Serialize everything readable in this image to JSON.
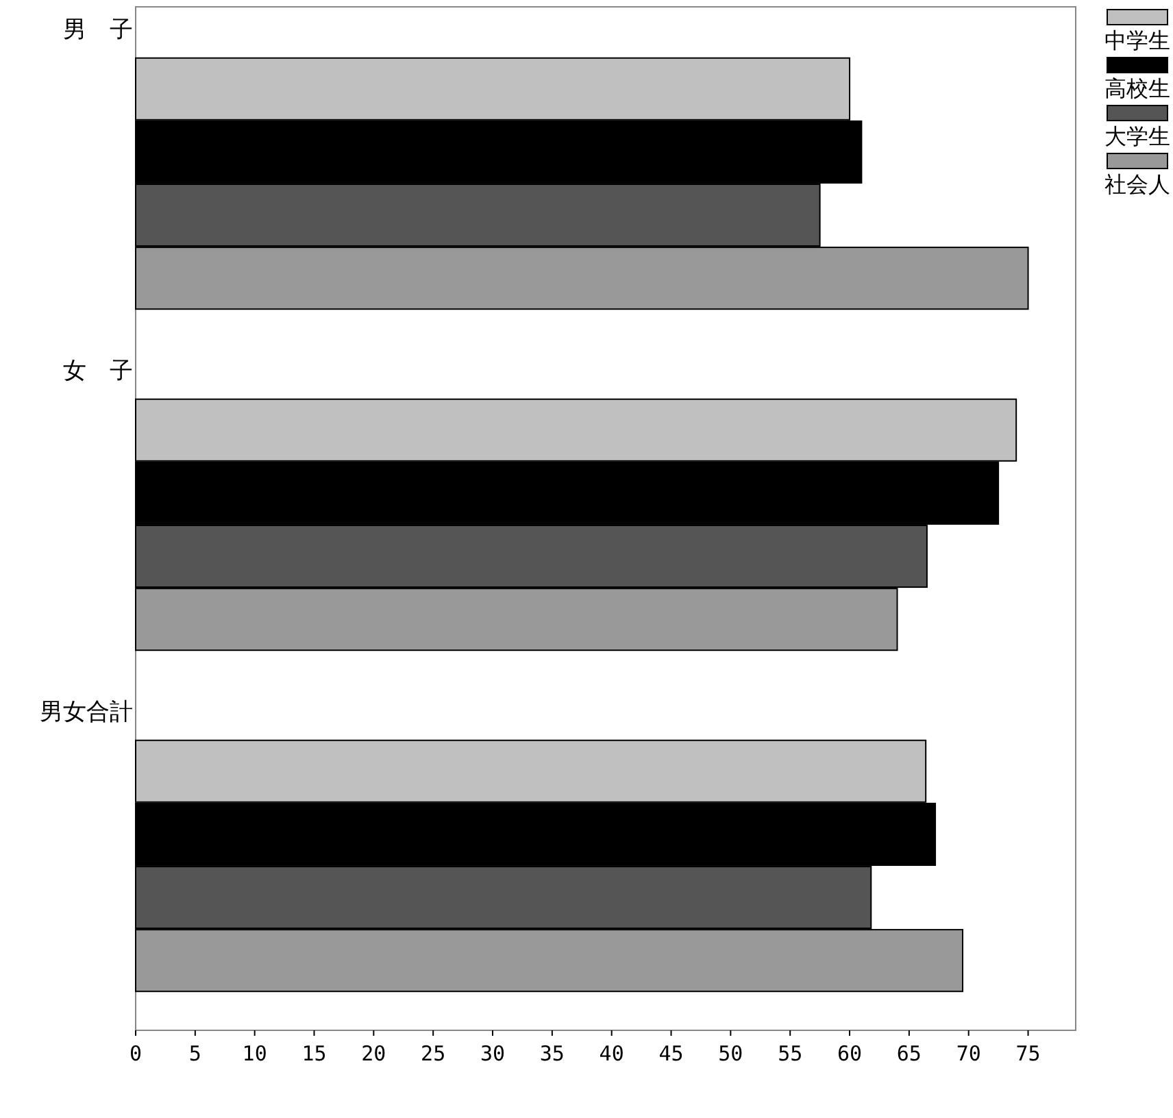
{
  "chart_data": {
    "type": "bar",
    "orientation": "horizontal",
    "categories": [
      "男　子",
      "女　子",
      "男女合計"
    ],
    "series": [
      {
        "name": "中学生",
        "color": "#c0c0c0",
        "values": [
          60,
          74,
          66.4
        ]
      },
      {
        "name": "高校生",
        "color": "#000000",
        "values": [
          61,
          72.5,
          67.2
        ]
      },
      {
        "name": "大学生",
        "color": "#555555",
        "values": [
          57.5,
          66.5,
          61.8
        ]
      },
      {
        "name": "社会人",
        "color": "#999999",
        "values": [
          75,
          64,
          69.5
        ]
      }
    ],
    "xlim": [
      0,
      79
    ],
    "xticks": [
      0,
      5,
      10,
      15,
      20,
      25,
      30,
      35,
      40,
      45,
      50,
      55,
      60,
      65,
      70,
      75
    ],
    "legend": "top right",
    "grid": false
  }
}
